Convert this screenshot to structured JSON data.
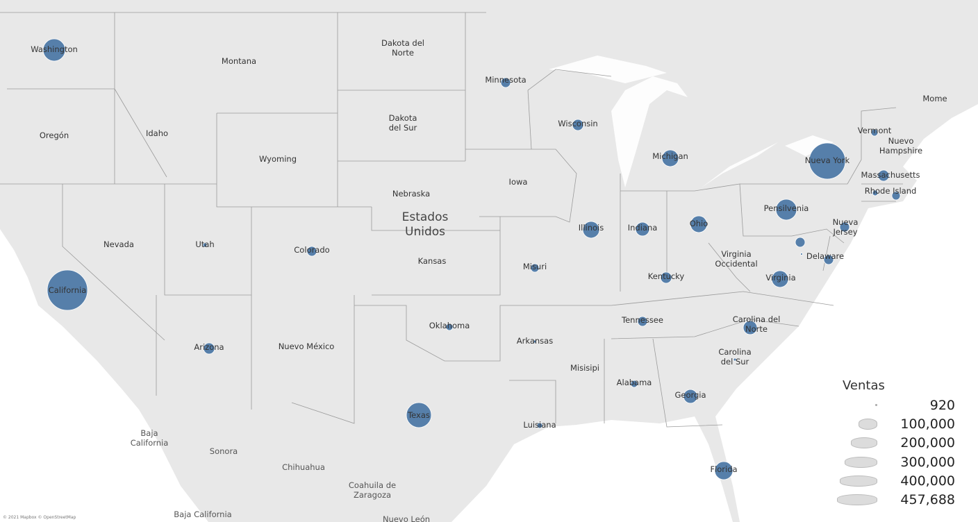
{
  "map": {
    "country_label": [
      "Estados",
      "Unidos"
    ],
    "labels": [
      [
        "Washington"
      ],
      [
        "Montana"
      ],
      [
        "Dakota del",
        "Norte"
      ],
      [
        "Minnesota"
      ],
      [
        "Oregón"
      ],
      [
        "Idaho"
      ],
      [
        "Wyoming"
      ],
      [
        "Dakota",
        "del Sur"
      ],
      [
        "Wisconsin"
      ],
      [
        "Michigan"
      ],
      [
        "Iowa"
      ],
      [
        "Nebraska"
      ],
      [
        "Nevada"
      ],
      [
        "Utah"
      ],
      [
        "Colorado"
      ],
      [
        "Kansas"
      ],
      [
        "Illinois"
      ],
      [
        "Indiana"
      ],
      [
        "Ohio"
      ],
      [
        "Misuri"
      ],
      [
        "Pensilvenia"
      ],
      [
        "Nueva York"
      ],
      [
        "Vermont"
      ],
      [
        "Nuevo",
        "Hampshire"
      ],
      [
        "Massachusetts"
      ],
      [
        "Rhode Island"
      ],
      [
        "Nueva",
        "Jersey"
      ],
      [
        "Delaware"
      ],
      [
        "Virginia",
        "Occidental"
      ],
      [
        "Virginia"
      ],
      [
        "Kentucky"
      ],
      [
        "California"
      ],
      [
        "Tennessee"
      ],
      [
        "Carolina del",
        "Norte"
      ],
      [
        "Oklahoma"
      ],
      [
        "Arkansas"
      ],
      [
        "Arizona"
      ],
      [
        "Nuevo México"
      ],
      [
        "Carolina",
        "del Sur"
      ],
      [
        "Misisipi"
      ],
      [
        "Alabama"
      ],
      [
        "Georgia"
      ],
      [
        "Texas"
      ],
      [
        "Luisiana"
      ],
      [
        "Florida"
      ],
      [
        "Mome"
      ]
    ],
    "mexico_labels": [
      [
        "Baja",
        "California"
      ],
      [
        "Sonora"
      ],
      [
        "Chihuahua"
      ],
      [
        "Coahuila de",
        "Zaragoza"
      ],
      [
        "Baja California"
      ],
      [
        "Nuevo León"
      ]
    ],
    "marks": [
      {
        "state": "Washington",
        "sales": 139000
      },
      {
        "state": "California",
        "sales": 457688
      },
      {
        "state": "Utah",
        "sales": 4900
      },
      {
        "state": "Colorado",
        "sales": 26700
      },
      {
        "state": "Arizona",
        "sales": 34800
      },
      {
        "state": "Texas",
        "sales": 176000
      },
      {
        "state": "Oklahoma",
        "sales": 13600
      },
      {
        "state": "Minnesota",
        "sales": 26700
      },
      {
        "state": "Wisconsin",
        "sales": 34800
      },
      {
        "state": "Michigan",
        "sales": 78000
      },
      {
        "state": "Illinois",
        "sales": 78000
      },
      {
        "state": "Indiana",
        "sales": 54000
      },
      {
        "state": "Ohio",
        "sales": 78000
      },
      {
        "state": "Missouri",
        "sales": 19600
      },
      {
        "state": "Kentucky",
        "sales": 34800
      },
      {
        "state": "Tennessee",
        "sales": 26700
      },
      {
        "state": "Arkansas",
        "sales": 2200
      },
      {
        "state": "Louisiana",
        "sales": 8700
      },
      {
        "state": "Alabama",
        "sales": 13600
      },
      {
        "state": "Georgia",
        "sales": 54000
      },
      {
        "state": "Florida",
        "sales": 92000
      },
      {
        "state": "North Carolina",
        "sales": 54000
      },
      {
        "state": "South Carolina",
        "sales": 2200
      },
      {
        "state": "Virginia",
        "sales": 78000
      },
      {
        "state": "Pennsylvania",
        "sales": 122000
      },
      {
        "state": "New York",
        "sales": 368000
      },
      {
        "state": "Vermont",
        "sales": 13600
      },
      {
        "state": "Massachusetts",
        "sales": 34800
      },
      {
        "state": "Rhode Island",
        "sales": 19600
      },
      {
        "state": "Connecticut",
        "sales": 8700
      },
      {
        "state": "New Jersey",
        "sales": 26700
      },
      {
        "state": "Maryland",
        "sales": 26700
      },
      {
        "state": "District of Columbia",
        "sales": 920
      },
      {
        "state": "Delaware",
        "sales": 26700
      }
    ],
    "mark_color": "#4e79a7",
    "land_color": "#e8e8e8",
    "water_color": "#ffffff"
  },
  "legend": {
    "title": "Ventas",
    "items": [
      {
        "label": "920",
        "value": 920
      },
      {
        "label": "100,000",
        "value": 100000
      },
      {
        "label": "200,000",
        "value": 200000
      },
      {
        "label": "300,000",
        "value": 300000
      },
      {
        "label": "400,000",
        "value": 400000
      },
      {
        "label": "457,688",
        "value": 457688
      }
    ]
  },
  "attribution": "© 2021 Mapbox © OpenStreetMap"
}
